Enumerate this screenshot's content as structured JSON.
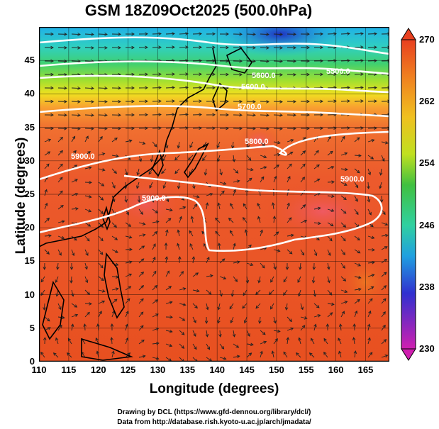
{
  "title": "GSM 18Z09Oct2025 (500.0hPa)",
  "axes": {
    "xlabel": "Longitude (degrees)",
    "ylabel": "Latitude  (degrees)",
    "x_ticks": [
      "110",
      "115",
      "120",
      "125",
      "130",
      "135",
      "140",
      "145",
      "150",
      "155",
      "160",
      "165"
    ],
    "y_ticks": [
      "0",
      "5",
      "10",
      "15",
      "20",
      "25",
      "30",
      "35",
      "40",
      "45"
    ],
    "xlim": [
      110,
      169
    ],
    "ylim": [
      0,
      50
    ]
  },
  "colorbar": {
    "ticks": [
      "270",
      "262",
      "254",
      "246",
      "238",
      "230"
    ],
    "range": [
      230,
      270
    ],
    "colors": [
      "#d020b0",
      "#3030d0",
      "#20a0e0",
      "#30d0a0",
      "#40c040",
      "#c0e020",
      "#f0e020",
      "#f08020",
      "#e84020"
    ]
  },
  "contours": {
    "labels": [
      "5500.0",
      "5600.0",
      "5600.0",
      "5700.0",
      "5800.0",
      "5900.0",
      "5900.0",
      "5900.0"
    ]
  },
  "credits": {
    "line1": "Drawing by DCL (https://www.gfd-dennou.org/library/dcl/)",
    "line2": "Data from http://database.rish.kyoto-u.ac.jp/arch/jmadata/"
  }
}
